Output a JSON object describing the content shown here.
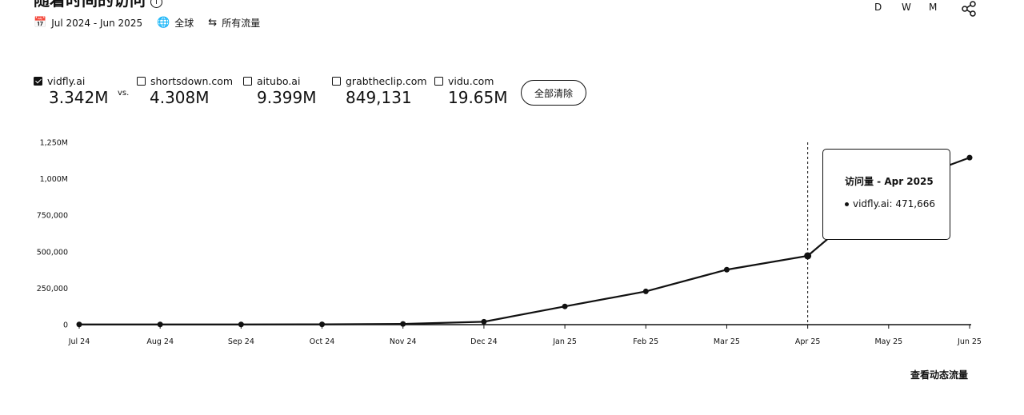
{
  "header": {
    "title": "随着时间的访问",
    "info_icon": "info-icon",
    "date_range": "Jul 2024 - Jun 2025",
    "region": "全球",
    "traffic_type": "所有流量",
    "granularity": [
      "D",
      "W",
      "M"
    ]
  },
  "compare": {
    "vs_label": "vs.",
    "clear_label": "全部清除",
    "sites": [
      {
        "name": "vidfly.ai",
        "value": "3.342M",
        "checked": true
      },
      {
        "name": "shortsdown.com",
        "value": "4.308M",
        "checked": false
      },
      {
        "name": "aitubo.ai",
        "value": "9.399M",
        "checked": false
      },
      {
        "name": "grabtheclip.com",
        "value": "849,131",
        "checked": false
      },
      {
        "name": "vidu.com",
        "value": "19.65M",
        "checked": false
      }
    ]
  },
  "tooltip": {
    "title": "访问量 - Apr 2025",
    "row": "vidfly.ai: 471,666"
  },
  "footer": {
    "link_label": "查看动态流量"
  },
  "chart_data": {
    "type": "line",
    "categories": [
      "Jul 24",
      "Aug 24",
      "Sep 24",
      "Oct 24",
      "Nov 24",
      "Dec 24",
      "Jan 25",
      "Feb 25",
      "Mar 25",
      "Apr 25",
      "May 25",
      "Jun 25"
    ],
    "y_tick_labels": [
      "0",
      "250,000",
      "500,000",
      "750,000",
      "1,000M",
      "1,250M"
    ],
    "y_ticks": [
      0,
      250000,
      500000,
      750000,
      1000000,
      1250000
    ],
    "ylim": [
      0,
      1250000
    ],
    "series": [
      {
        "name": "vidfly.ai",
        "values": [
          1500,
          1500,
          1500,
          2000,
          5000,
          20000,
          125000,
          228000,
          377000,
          471666,
          940000,
          1145000
        ]
      }
    ],
    "highlight_index": 9,
    "grid": false,
    "legend": "none"
  }
}
